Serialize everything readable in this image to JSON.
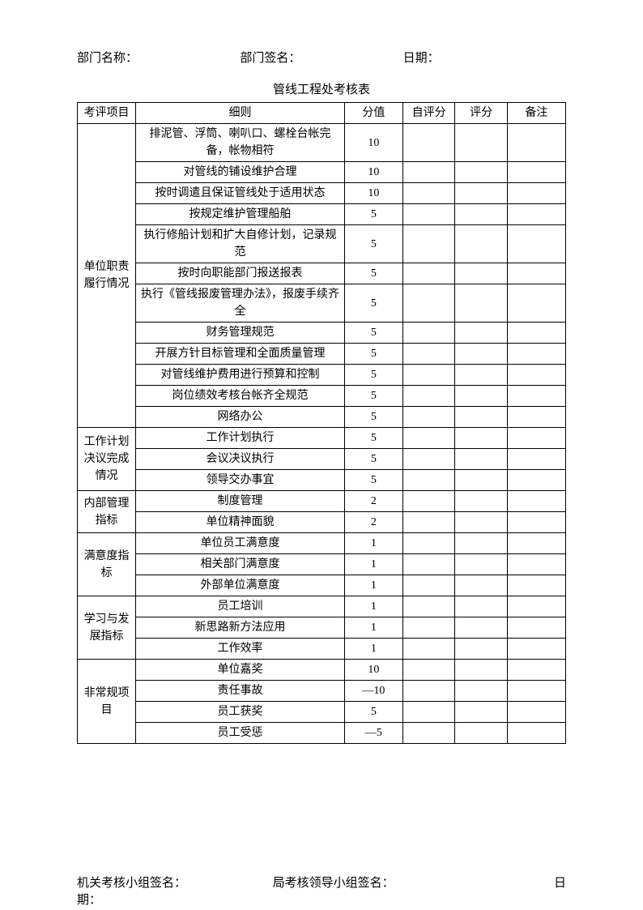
{
  "header": {
    "dept_name_label": "部门名称：",
    "dept_sign_label": "部门签名：",
    "date_label": "日期："
  },
  "table_title": "管线工程处考核表",
  "columns": {
    "category": "考评项目",
    "rule": "细则",
    "score": "分值",
    "self": "自评分",
    "eval": "评分",
    "note": "备注"
  },
  "sections": [
    {
      "category": "单位职责履行情况",
      "rows": [
        {
          "rule": "排泥管、浮筒、喇叭口、螺栓台帐完备，帐物相符",
          "score": "10"
        },
        {
          "rule": "对管线的铺设维护合理",
          "score": "10"
        },
        {
          "rule": "按时调遣且保证管线处于适用状态",
          "score": "10"
        },
        {
          "rule": "按规定维护管理船舶",
          "score": "5"
        },
        {
          "rule": "执行修船计划和扩大自修计划，记录规范",
          "score": "5"
        },
        {
          "rule": "按时向职能部门报送报表",
          "score": "5"
        },
        {
          "rule": "执行《管线报废管理办法》，报废手续齐全",
          "score": "5"
        },
        {
          "rule": "财务管理规范",
          "score": "5"
        },
        {
          "rule": "开展方针目标管理和全面质量管理",
          "score": "5"
        },
        {
          "rule": "对管线维护费用进行预算和控制",
          "score": "5"
        },
        {
          "rule": "岗位绩效考核台帐齐全规范",
          "score": "5"
        },
        {
          "rule": "网络办公",
          "score": "5"
        }
      ]
    },
    {
      "category": "工作计划决议完成情况",
      "rows": [
        {
          "rule": "工作计划执行",
          "score": "5"
        },
        {
          "rule": "会议决议执行",
          "score": "5"
        },
        {
          "rule": "领导交办事宜",
          "score": "5"
        }
      ]
    },
    {
      "category": "内部管理指标",
      "rows": [
        {
          "rule": "制度管理",
          "score": "2"
        },
        {
          "rule": "单位精神面貌",
          "score": "2"
        }
      ]
    },
    {
      "category": "满意度指标",
      "rows": [
        {
          "rule": "单位员工满意度",
          "score": "1"
        },
        {
          "rule": "相关部门满意度",
          "score": "1"
        },
        {
          "rule": "外部单位满意度",
          "score": "1"
        }
      ]
    },
    {
      "category": "学习与发展指标",
      "rows": [
        {
          "rule": "员工培训",
          "score": "1"
        },
        {
          "rule": "新思路新方法应用",
          "score": "1"
        },
        {
          "rule": "工作效率",
          "score": "1"
        }
      ]
    },
    {
      "category": "非常规项目",
      "rows": [
        {
          "rule": "单位嘉奖",
          "score": "10"
        },
        {
          "rule": "责任事故",
          "score": "—10"
        },
        {
          "rule": "员工获奖",
          "score": "5"
        },
        {
          "rule": "员工受惩",
          "score": "—5"
        }
      ]
    }
  ],
  "footer": {
    "org_sign_label": "机关考核小组签名：",
    "bureau_sign_label": "局考核领导小组签名：",
    "date_label_1": "日",
    "date_label_2": "期："
  }
}
